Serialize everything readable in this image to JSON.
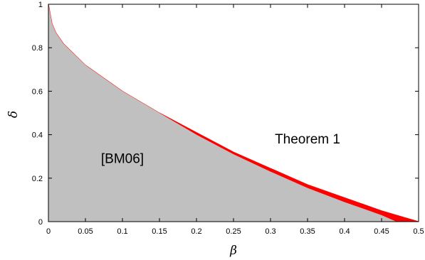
{
  "chart_data": {
    "type": "area",
    "xlabel": "β",
    "ylabel": "δ",
    "xlim": [
      0,
      0.5
    ],
    "ylim": [
      0,
      1
    ],
    "x_ticks": [
      "0",
      "0.05",
      "0.1",
      "0.15",
      "0.2",
      "0.25",
      "0.3",
      "0.35",
      "0.4",
      "0.45",
      "0.5"
    ],
    "y_ticks": [
      "0",
      "0.2",
      "0.4",
      "0.6",
      "0.8",
      "1"
    ],
    "grid": false,
    "annotations": [
      {
        "text": "[BM06]",
        "x": 0.1,
        "y": 0.27
      },
      {
        "text": "Theorem 1",
        "x": 0.35,
        "y": 0.36
      }
    ],
    "series": [
      {
        "name": "[BM06]",
        "style": "filled-region",
        "color": "#c0c0c0",
        "x": [
          0,
          0.005,
          0.01,
          0.02,
          0.05,
          0.1,
          0.15,
          0.2,
          0.25,
          0.3,
          0.35,
          0.4,
          0.45,
          0.47
        ],
        "y": [
          1.0,
          0.91,
          0.87,
          0.82,
          0.72,
          0.6,
          0.5,
          0.4,
          0.31,
          0.23,
          0.155,
          0.09,
          0.03,
          0.0
        ]
      },
      {
        "name": "Theorem 1",
        "style": "filled-band",
        "color": "#ff0000",
        "x": [
          0,
          0.005,
          0.01,
          0.02,
          0.05,
          0.1,
          0.15,
          0.2,
          0.25,
          0.3,
          0.35,
          0.4,
          0.45,
          0.47,
          0.5
        ],
        "y": [
          1.0,
          0.91,
          0.87,
          0.82,
          0.72,
          0.6,
          0.5,
          0.41,
          0.32,
          0.245,
          0.17,
          0.11,
          0.05,
          0.03,
          0.0
        ]
      }
    ]
  }
}
